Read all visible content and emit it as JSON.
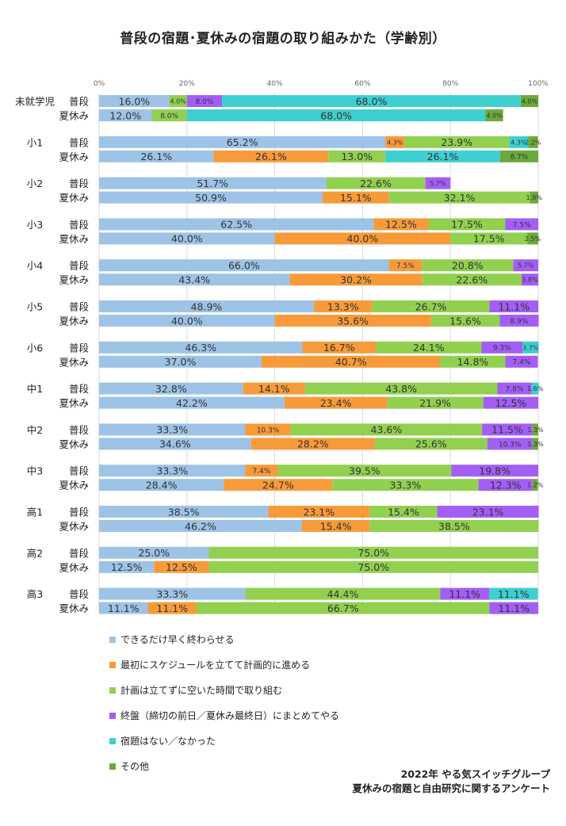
{
  "chart_data": {
    "type": "bar",
    "orientation": "horizontal",
    "stacked": "percent",
    "title": "普段の宿題･夏休みの宿題の取り組みかた（学齢別）",
    "xlim": [
      0,
      100
    ],
    "x_ticks": [
      "0%",
      "20%",
      "40%",
      "60%",
      "80%",
      "100%"
    ],
    "series": [
      {
        "name": "できるだけ早く終わらせる",
        "color": "#9dc3e6"
      },
      {
        "name": "最初にスケジュールを立てて計画的に進める",
        "color": "#f79b3a"
      },
      {
        "name": "計画は立てずに空いた時間で取り組む",
        "color": "#92d050"
      },
      {
        "name": "終盤（締切の前日／夏休み最終日）にまとめてやる",
        "color": "#a35ef5"
      },
      {
        "name": "宿題はない／なかった",
        "color": "#3ecfd0"
      },
      {
        "name": "その他",
        "color": "#6aaa3a"
      }
    ],
    "groups": [
      {
        "name": "未就学児",
        "bars": [
          {
            "label": "普段",
            "values": [
              16.0,
              0,
              4.0,
              8.0,
              68.0,
              4.0
            ]
          },
          {
            "label": "夏休み",
            "values": [
              12.0,
              0,
              8.0,
              0,
              68.0,
              4.0
            ]
          }
        ]
      },
      {
        "name": "小1",
        "bars": [
          {
            "label": "普段",
            "values": [
              65.2,
              4.3,
              23.9,
              0,
              4.3,
              2.2
            ]
          },
          {
            "label": "夏休み",
            "values": [
              26.1,
              26.1,
              13.0,
              0,
              26.1,
              8.7
            ]
          }
        ]
      },
      {
        "name": "小2",
        "bars": [
          {
            "label": "普段",
            "values": [
              51.7,
              0,
              22.6,
              5.7,
              0,
              0
            ]
          },
          {
            "label": "夏休み",
            "values": [
              50.9,
              15.1,
              32.1,
              0,
              0,
              1.9
            ]
          }
        ]
      },
      {
        "name": "小3",
        "bars": [
          {
            "label": "普段",
            "values": [
              62.5,
              12.5,
              17.5,
              7.5,
              0,
              0
            ]
          },
          {
            "label": "夏休み",
            "values": [
              40.0,
              40.0,
              17.5,
              0,
              0,
              2.5
            ]
          }
        ]
      },
      {
        "name": "小4",
        "bars": [
          {
            "label": "普段",
            "values": [
              66.0,
              7.5,
              20.8,
              5.7,
              0,
              0
            ]
          },
          {
            "label": "夏休み",
            "values": [
              43.4,
              30.2,
              22.6,
              3.8,
              0,
              0
            ]
          }
        ]
      },
      {
        "name": "小5",
        "bars": [
          {
            "label": "普段",
            "values": [
              48.9,
              13.3,
              26.7,
              11.1,
              0,
              0
            ]
          },
          {
            "label": "夏休み",
            "values": [
              40.0,
              35.6,
              15.6,
              8.9,
              0,
              0
            ]
          }
        ]
      },
      {
        "name": "小6",
        "bars": [
          {
            "label": "普段",
            "values": [
              46.3,
              16.7,
              24.1,
              9.3,
              3.7,
              0
            ]
          },
          {
            "label": "夏休み",
            "values": [
              37.0,
              40.7,
              14.8,
              7.4,
              0,
              0
            ]
          }
        ]
      },
      {
        "name": "中1",
        "bars": [
          {
            "label": "普段",
            "values": [
              32.8,
              14.1,
              43.8,
              7.8,
              1.6,
              0
            ]
          },
          {
            "label": "夏休み",
            "values": [
              42.2,
              23.4,
              21.9,
              12.5,
              0,
              0
            ]
          }
        ]
      },
      {
        "name": "中2",
        "bars": [
          {
            "label": "普段",
            "values": [
              33.3,
              10.3,
              43.6,
              11.5,
              0,
              1.3
            ]
          },
          {
            "label": "夏休み",
            "values": [
              34.6,
              28.2,
              25.6,
              10.3,
              0,
              1.3
            ]
          }
        ]
      },
      {
        "name": "中3",
        "bars": [
          {
            "label": "普段",
            "values": [
              33.3,
              7.4,
              39.5,
              19.8,
              0,
              0
            ]
          },
          {
            "label": "夏休み",
            "values": [
              28.4,
              24.7,
              33.3,
              12.3,
              0,
              1.2
            ]
          }
        ]
      },
      {
        "name": "高1",
        "bars": [
          {
            "label": "普段",
            "values": [
              38.5,
              23.1,
              15.4,
              23.1,
              0,
              0
            ]
          },
          {
            "label": "夏休み",
            "values": [
              46.2,
              15.4,
              38.5,
              0,
              0,
              0
            ]
          }
        ]
      },
      {
        "name": "高2",
        "bars": [
          {
            "label": "普段",
            "values": [
              25.0,
              0,
              75.0,
              0,
              0,
              0
            ]
          },
          {
            "label": "夏休み",
            "values": [
              12.5,
              12.5,
              75.0,
              0,
              0,
              0
            ]
          }
        ]
      },
      {
        "name": "高3",
        "bars": [
          {
            "label": "普段",
            "values": [
              33.3,
              0,
              44.4,
              11.1,
              11.1,
              0
            ]
          },
          {
            "label": "夏休み",
            "values": [
              11.1,
              11.1,
              66.7,
              11.1,
              0,
              0
            ]
          }
        ]
      }
    ]
  },
  "source": {
    "line1": "2022年 やる気スイッチグループ",
    "line2": "夏休みの宿題と自由研究に関するアンケート"
  }
}
